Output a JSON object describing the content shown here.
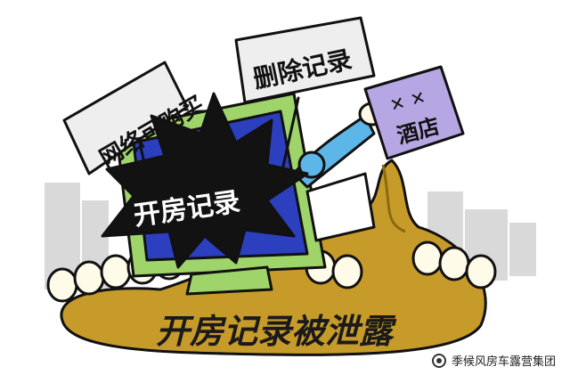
{
  "illustration": {
    "signs": {
      "buy_online": "网络可购买",
      "delete_records": "删除记录",
      "hotel_mark": "✕ ✕",
      "hotel_label": "酒店"
    },
    "burst_text": "开房记录",
    "caption": "开房记录被泄露",
    "colors": {
      "monitor_frame": "#9fd46b",
      "monitor_screen": "#2b3fbf",
      "spill": "#c79b2a",
      "bucket": "#b6a6e3",
      "sleeve": "#5db6e8",
      "burst": "#121212",
      "ink": "#111111"
    }
  },
  "watermark": {
    "text": "季候风房车露营集团",
    "icon": "wechat-icon"
  }
}
